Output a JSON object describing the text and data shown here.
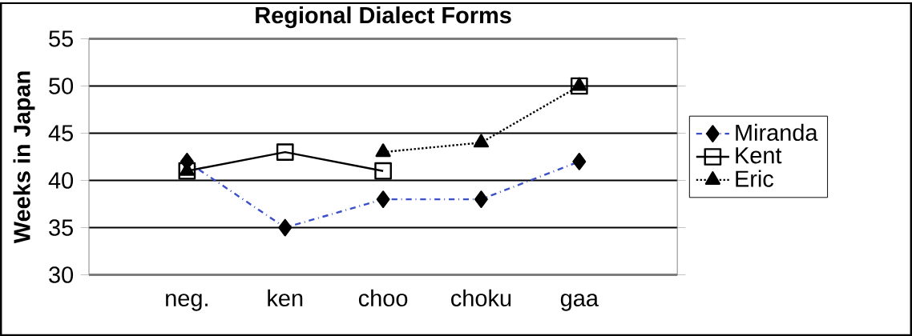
{
  "chart_data": {
    "type": "line",
    "title": "Regional Dialect Forms",
    "ylabel": "Weeks in Japan",
    "categories": [
      "neg.",
      "ken",
      "choo",
      "choku",
      "gaa"
    ],
    "series": [
      {
        "name": "Miranda",
        "color": "#3a4fc8",
        "marker": "diamond",
        "line_style": "dashdot",
        "values": [
          42,
          35,
          38,
          38,
          42
        ]
      },
      {
        "name": "Kent",
        "color": "#000000",
        "marker": "square",
        "line_style": "solid",
        "values": [
          41,
          43,
          41,
          null,
          50
        ]
      },
      {
        "name": "Eric",
        "color": "#000000",
        "marker": "triangle",
        "line_style": "dotted",
        "values": [
          41,
          null,
          43,
          44,
          50
        ]
      }
    ],
    "ylim": [
      30,
      55
    ],
    "yticks": [
      30,
      35,
      40,
      45,
      50,
      55
    ],
    "grid": "y",
    "legend": "right"
  }
}
